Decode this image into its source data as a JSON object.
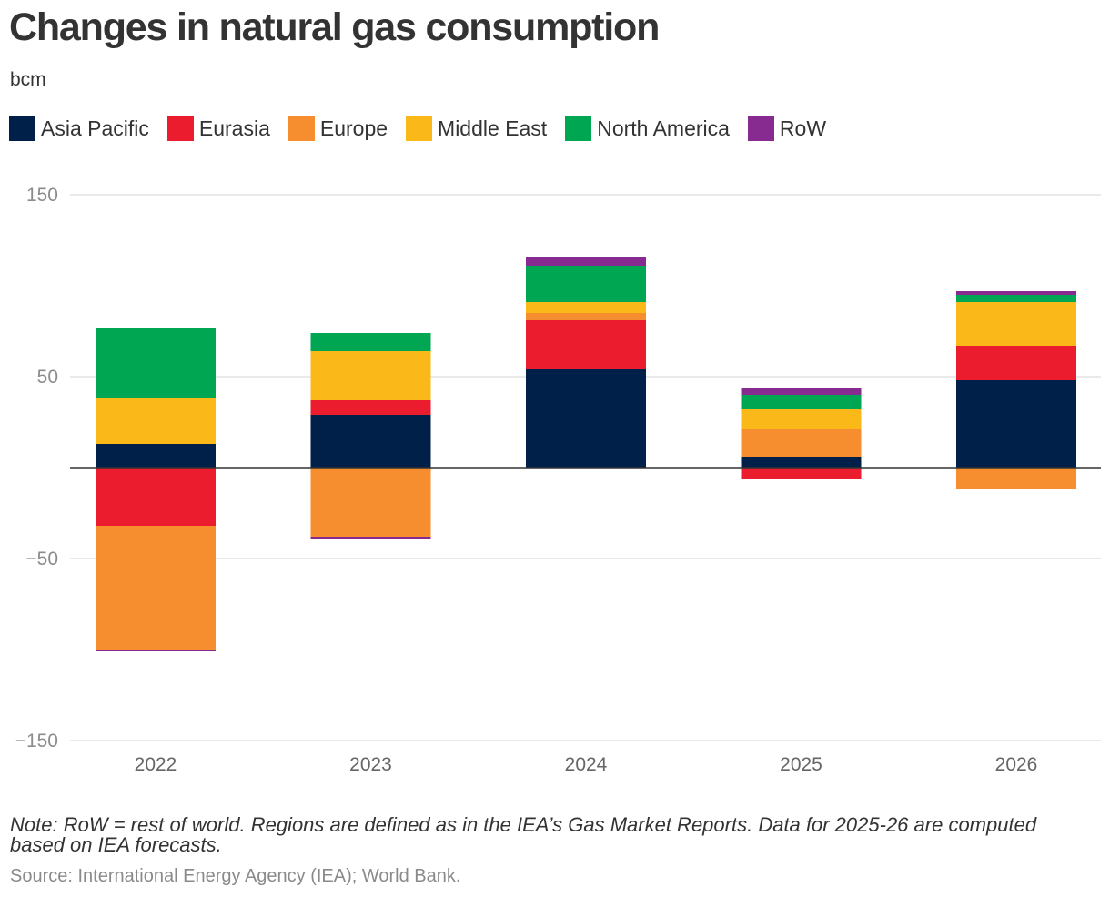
{
  "chart_data": {
    "type": "bar",
    "stacked": true,
    "title": "Changes in natural gas consumption",
    "unit_label": "bcm",
    "categories": [
      "2022",
      "2023",
      "2024",
      "2025",
      "2026"
    ],
    "ylim": [
      -150,
      150
    ],
    "yticks": [
      {
        "value": 150,
        "label": "150"
      },
      {
        "value": 50,
        "label": "50"
      },
      {
        "value": -50,
        "label": "−50"
      },
      {
        "value": -150,
        "label": "−150"
      }
    ],
    "series": [
      {
        "name": "Asia Pacific",
        "color": "#00204a",
        "values": [
          13,
          29,
          54,
          6,
          48
        ]
      },
      {
        "name": "Eurasia",
        "color": "#ea1c2e",
        "values": [
          -32,
          8,
          27,
          -6,
          19
        ]
      },
      {
        "name": "Europe",
        "color": "#f68d2e",
        "values": [
          -68,
          -38,
          4,
          15,
          -12
        ]
      },
      {
        "name": "Middle East",
        "color": "#fbb819",
        "values": [
          25,
          27,
          6,
          11,
          24
        ]
      },
      {
        "name": "North America",
        "color": "#00a651",
        "values": [
          39,
          10,
          20,
          8,
          4
        ]
      },
      {
        "name": "RoW",
        "color": "#872b90",
        "values": [
          -1,
          -1,
          5,
          4,
          2
        ]
      }
    ],
    "legend_position": "top-left",
    "grid": true
  },
  "note": "Note: RoW = rest of world. Regions are defined as in the IEA’s Gas Market Reports. Data for 2025-26 are computed based on IEA forecasts.",
  "source": "Source: International Energy Agency (IEA); World Bank."
}
